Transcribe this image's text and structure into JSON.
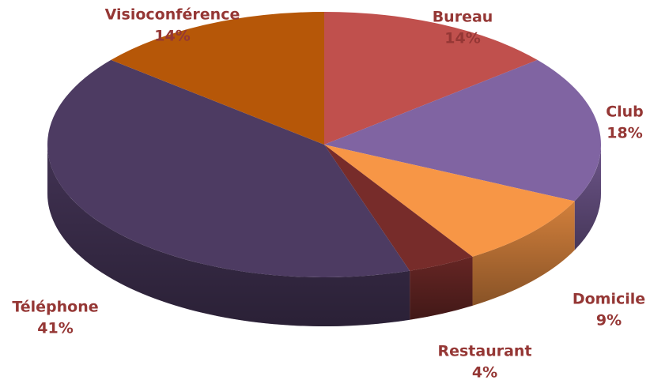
{
  "chart_data": {
    "type": "pie",
    "categories": [
      "Bureau",
      "Club",
      "Domicile",
      "Restaurant",
      "Téléphone",
      "Visioconférence"
    ],
    "values": [
      14,
      18,
      9,
      4,
      41,
      14
    ],
    "value_labels": [
      "14%",
      "18%",
      "9%",
      "4%",
      "41%",
      "14%"
    ],
    "colors": [
      "#c0504d",
      "#8064a2",
      "#f79646",
      "#772c2a",
      "#4d3b62",
      "#b65708"
    ]
  }
}
